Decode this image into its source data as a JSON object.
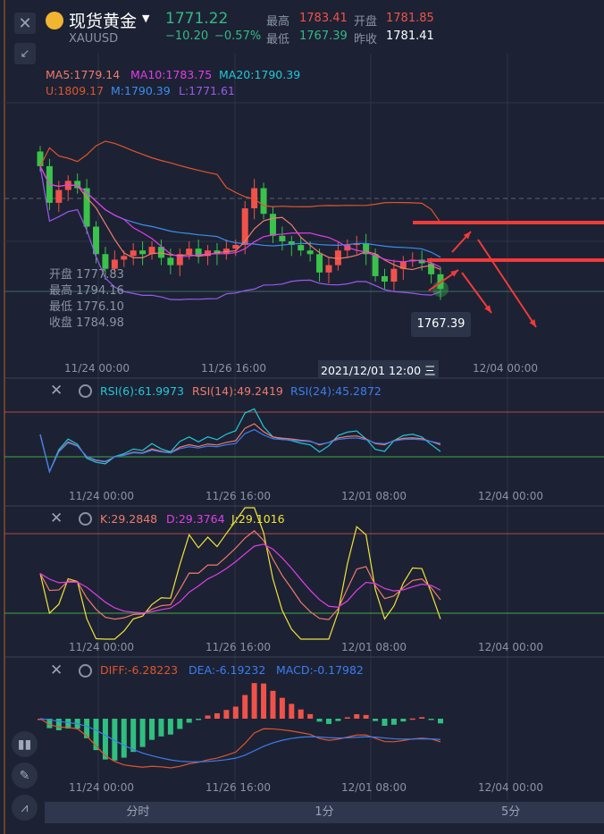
{
  "header": {
    "title": "现货黄金",
    "symbol": "XAUUSD",
    "price": "1771.22",
    "change": "−10.20",
    "change_pct": "−0.57%",
    "high_label": "最高",
    "high": "1783.41",
    "open_label": "开盘",
    "open": "1781.85",
    "low_label": "最低",
    "low": "1767.39",
    "prev_close_label": "昨收",
    "prev_close": "1781.41"
  },
  "main": {
    "ma": {
      "ma5": "MA5:1779.14",
      "ma10": "MA10:1783.75",
      "ma20": "MA20:1790.39"
    },
    "boll": {
      "u": "U:1809.17",
      "m": "M:1790.39",
      "l": "L:1771.61"
    },
    "ohlc": {
      "open": "开盘 1777.83",
      "high": "最高 1794.16",
      "low": "最低 1776.10",
      "close": "收盘 1784.98"
    },
    "price_tag": "1767.39",
    "crosshair_time": "2021/12/01 12:00 三",
    "time_labels": [
      "11/24 00:00",
      "11/26 16:00",
      "12/04 00:00"
    ],
    "closes": [
      1838,
      1818,
      1825,
      1830,
      1826,
      1805,
      1790,
      1782,
      1787,
      1789,
      1792,
      1790,
      1794,
      1788,
      1784,
      1790,
      1793,
      1789,
      1792,
      1790,
      1793,
      1795,
      1815,
      1826,
      1812,
      1800,
      1797,
      1795,
      1792,
      1790,
      1780,
      1784,
      1792,
      1795,
      1796,
      1790,
      1778,
      1775,
      1782,
      1786,
      1787,
      1785,
      1779,
      1771
    ]
  },
  "rsi": {
    "rsi6": "RSI(6):61.9973",
    "rsi14": "RSI(14):49.2419",
    "rsi24": "RSI(24):45.2872"
  },
  "kdj": {
    "k": "K:29.2848",
    "d": "D:29.3764",
    "j": "J:29.1016"
  },
  "macd": {
    "diff": "DIFF:-6.28223",
    "dea": "DEA:-6.19232",
    "macd": "MACD:-0.17982"
  },
  "sub_time_labels": [
    "11/24 00:00",
    "11/26 16:00",
    "12/01 08:00",
    "12/04 00:00"
  ],
  "tabs": [
    "分时",
    "1分",
    "5分"
  ],
  "colors": {
    "up": "#f0524a",
    "down": "#3ac24a",
    "ma5": "#f07a6e",
    "ma10": "#e23de8",
    "ma20": "#22c7d8",
    "boll_u": "#e0542f",
    "boll_m": "#3d8cf0",
    "boll_l": "#9b59f0",
    "j": "#f2e23a",
    "annotation": "#f23a3a"
  }
}
